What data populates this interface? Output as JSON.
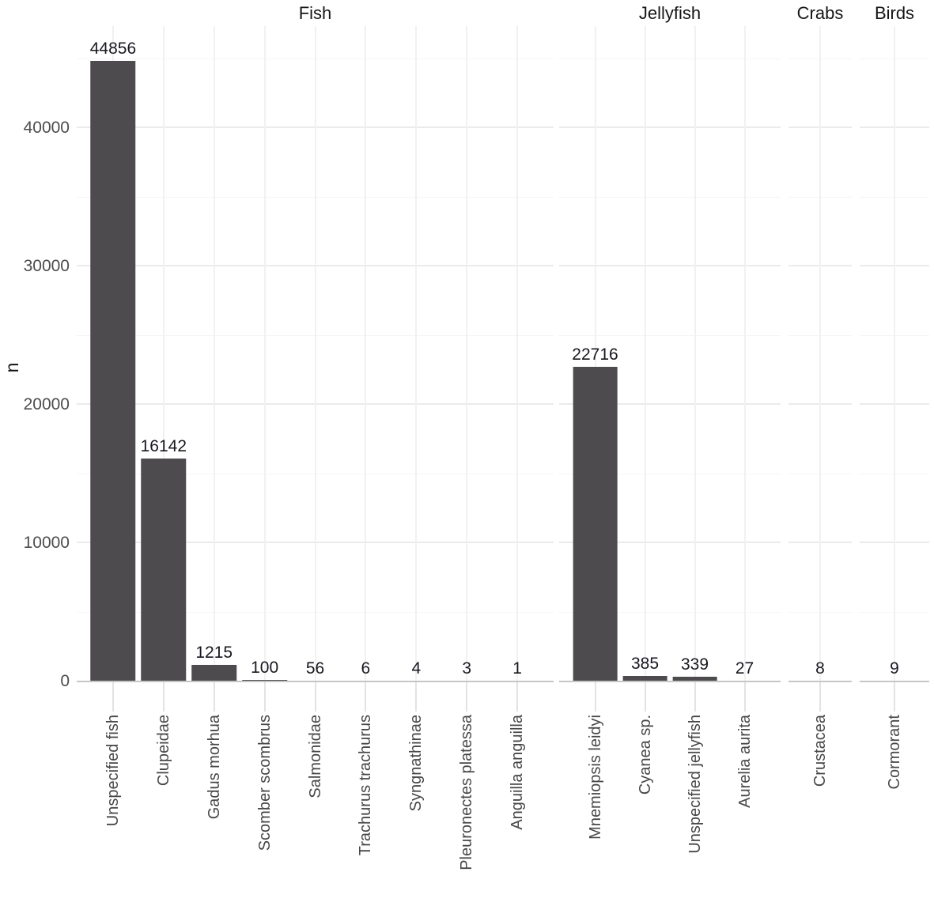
{
  "chart_data": {
    "type": "bar",
    "title": "",
    "ylabel": "n",
    "xlabel": "",
    "ylim": [
      0,
      47400
    ],
    "y_major_ticks": [
      0,
      10000,
      20000,
      30000,
      40000
    ],
    "y_minor_ticks": [
      5000,
      15000,
      25000,
      35000,
      45000
    ],
    "y_tick_labels": [
      "0",
      "10000",
      "20000",
      "30000",
      "40000"
    ],
    "grid": "faint horizontal major+minor lines and vertical line per category, white background",
    "legend": "none",
    "bar_color": "#4e4b4e",
    "value_label_color": "#17171f",
    "axis_text_color": "#4d4d4d",
    "facets": [
      {
        "label": "Fish",
        "categories": [
          "Unspecified fish",
          "Clupeidae",
          "Gadus morhua",
          "Scomber scombrus",
          "Salmonidae",
          "Trachurus trachurus",
          "Syngnathinae",
          "Pleuronectes platessa",
          "Anguilla anguilla"
        ],
        "values": [
          44856,
          16142,
          1215,
          100,
          56,
          6,
          4,
          3,
          1
        ]
      },
      {
        "label": "Jellyfish",
        "categories": [
          "Mnemiopsis leidyi",
          "Cyanea sp.",
          "Unspecified jellyfish",
          "Aurelia aurita"
        ],
        "values": [
          22716,
          385,
          339,
          27
        ]
      },
      {
        "label": "Crabs",
        "categories": [
          "Crustacea"
        ],
        "values": [
          8
        ]
      },
      {
        "label": "Birds",
        "categories": [
          "Cormorant"
        ],
        "values": [
          9
        ]
      }
    ]
  }
}
